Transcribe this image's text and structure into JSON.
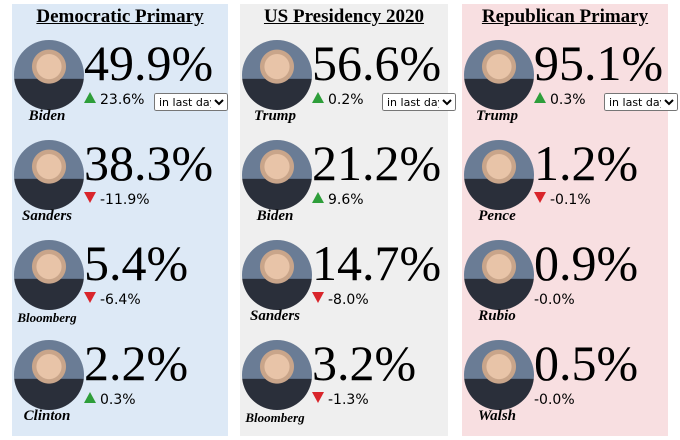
{
  "columns": [
    {
      "title": "Democratic Primary",
      "timeframe": "in last day",
      "candidates": [
        {
          "name": "Biden",
          "percent": "49.9%",
          "change": "23.6%",
          "direction": "up"
        },
        {
          "name": "Sanders",
          "percent": "38.3%",
          "change": "-11.9%",
          "direction": "down"
        },
        {
          "name": "Bloomberg",
          "percent": "5.4%",
          "change": "-6.4%",
          "direction": "down"
        },
        {
          "name": "Clinton",
          "percent": "2.2%",
          "change": "0.3%",
          "direction": "up"
        }
      ]
    },
    {
      "title": "US Presidency 2020",
      "timeframe": "in last day",
      "candidates": [
        {
          "name": "Trump",
          "percent": "56.6%",
          "change": "0.2%",
          "direction": "up"
        },
        {
          "name": "Biden",
          "percent": "21.2%",
          "change": "9.6%",
          "direction": "up"
        },
        {
          "name": "Sanders",
          "percent": "14.7%",
          "change": "-8.0%",
          "direction": "down"
        },
        {
          "name": "Bloomberg",
          "percent": "3.2%",
          "change": "-1.3%",
          "direction": "down"
        }
      ]
    },
    {
      "title": "Republican Primary",
      "timeframe": "in last day",
      "candidates": [
        {
          "name": "Trump",
          "percent": "95.1%",
          "change": "0.3%",
          "direction": "up"
        },
        {
          "name": "Pence",
          "percent": "1.2%",
          "change": "-0.1%",
          "direction": "down"
        },
        {
          "name": "Rubio",
          "percent": "0.9%",
          "change": "-0.0%",
          "direction": "none"
        },
        {
          "name": "Walsh",
          "percent": "0.5%",
          "change": "-0.0%",
          "direction": "none"
        }
      ]
    }
  ]
}
